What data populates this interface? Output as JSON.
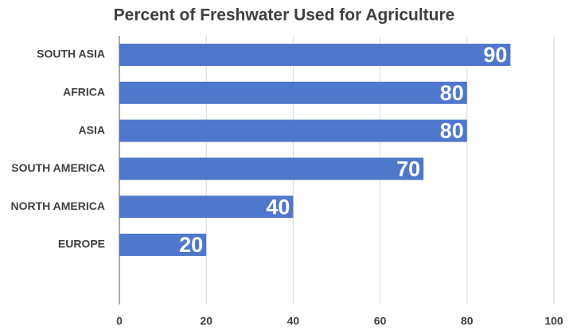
{
  "chart_data": {
    "type": "bar",
    "orientation": "horizontal",
    "title": "Percent of Freshwater Used for Agriculture",
    "categories": [
      "SOUTH ASIA",
      "AFRICA",
      "ASIA",
      "SOUTH AMERICA",
      "NORTH AMERICA",
      "EUROPE"
    ],
    "values": [
      90,
      80,
      80,
      70,
      40,
      20
    ],
    "color": "#4f78cc",
    "xlim": [
      0,
      100
    ],
    "xticks": [
      0,
      20,
      40,
      60,
      80,
      100
    ],
    "grid": true
  }
}
